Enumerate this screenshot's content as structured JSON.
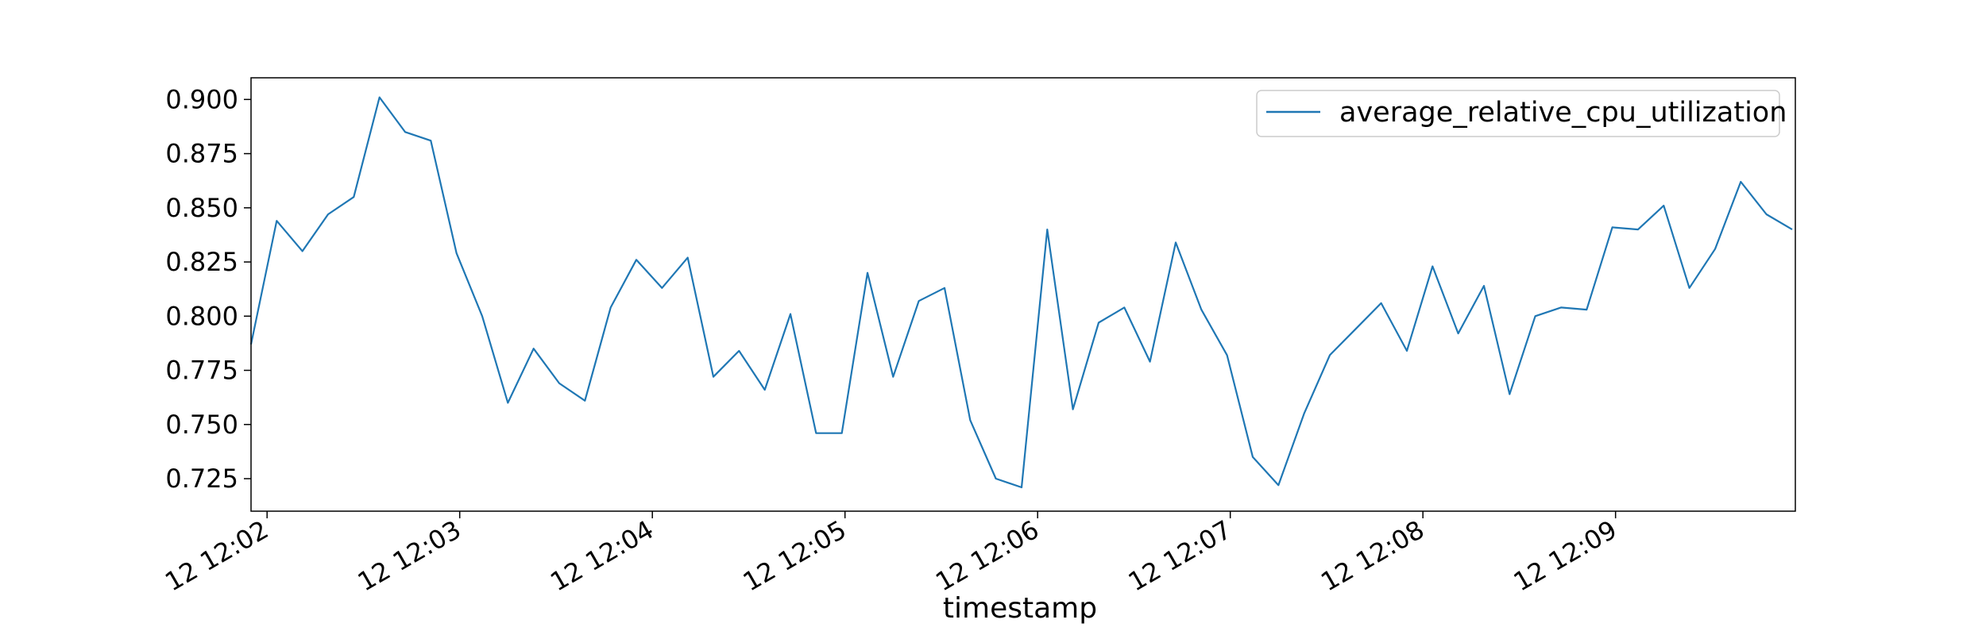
{
  "chart_data": {
    "type": "line",
    "title": "",
    "xlabel": "timestamp",
    "ylabel": "",
    "x_ticks": [
      "12 12:02",
      "12 12:03",
      "12 12:04",
      "12 12:05",
      "12 12:06",
      "12 12:07",
      "12 12:08",
      "12 12:09"
    ],
    "y_ticks": [
      "0.725",
      "0.750",
      "0.775",
      "0.800",
      "0.825",
      "0.850",
      "0.875",
      "0.900"
    ],
    "ylim": [
      0.71,
      0.91
    ],
    "xlim": [
      "12:01:55",
      "12:09:56"
    ],
    "grid": false,
    "legend": "top-right",
    "x": [
      "12:01:55",
      "12:02:03",
      "12:02:11",
      "12:02:19",
      "12:02:27",
      "12:02:35",
      "12:02:43",
      "12:02:51",
      "12:02:59",
      "12:03:07",
      "12:03:15",
      "12:03:23",
      "12:03:31",
      "12:03:39",
      "12:03:47",
      "12:03:55",
      "12:04:03",
      "12:04:11",
      "12:04:19",
      "12:04:27",
      "12:04:35",
      "12:04:43",
      "12:04:51",
      "12:04:59",
      "12:05:07",
      "12:05:15",
      "12:05:23",
      "12:05:31",
      "12:05:39",
      "12:05:47",
      "12:05:55",
      "12:06:03",
      "12:06:11",
      "12:06:19",
      "12:06:27",
      "12:06:35",
      "12:06:43",
      "12:06:51",
      "12:06:59",
      "12:07:07",
      "12:07:15",
      "12:07:23",
      "12:07:31",
      "12:07:39",
      "12:07:47",
      "12:07:55",
      "12:08:03",
      "12:08:11",
      "12:08:19",
      "12:08:27",
      "12:08:35",
      "12:08:43",
      "12:08:51",
      "12:08:59",
      "12:09:07",
      "12:09:15",
      "12:09:23",
      "12:09:31",
      "12:09:39",
      "12:09:47",
      "12:09:55"
    ],
    "series": [
      {
        "name": "average_relative_cpu_utilization",
        "color": "#1f77b4",
        "values": [
          0.787,
          0.844,
          0.83,
          0.847,
          0.855,
          0.901,
          0.885,
          0.881,
          0.829,
          0.8,
          0.76,
          0.785,
          0.769,
          0.761,
          0.804,
          0.826,
          0.813,
          0.827,
          0.772,
          0.784,
          0.766,
          0.801,
          0.746,
          0.746,
          0.82,
          0.772,
          0.807,
          0.813,
          0.752,
          0.725,
          0.721,
          0.84,
          0.757,
          0.797,
          0.804,
          0.779,
          0.834,
          0.803,
          0.782,
          0.735,
          0.722,
          0.755,
          0.782,
          0.794,
          0.806,
          0.784,
          0.823,
          0.792,
          0.814,
          0.764,
          0.8,
          0.804,
          0.803,
          0.841,
          0.84,
          0.851,
          0.813,
          0.831,
          0.862,
          0.847,
          0.84
        ]
      }
    ]
  }
}
